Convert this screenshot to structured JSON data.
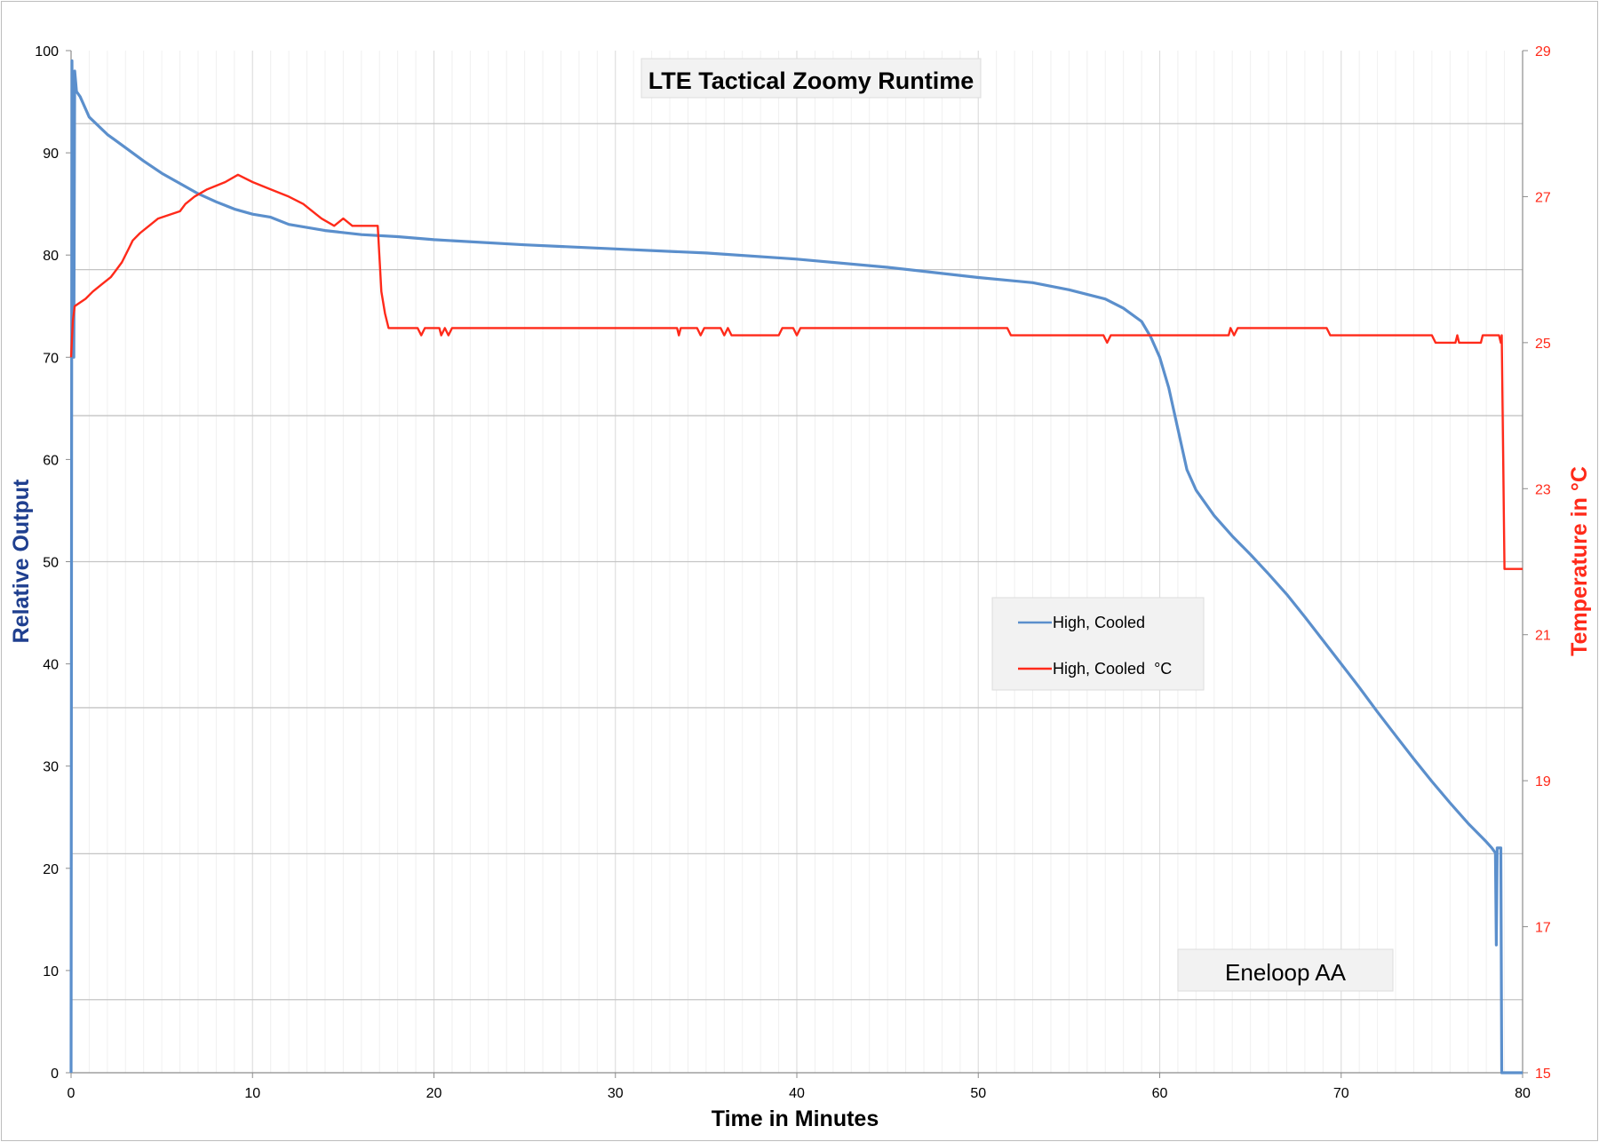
{
  "chart_data": {
    "type": "line",
    "title": "LTE Tactical Zoomy Runtime",
    "xlabel": "Time in Minutes",
    "ylabel": "Relative Output",
    "y2label": "Temperature in °C",
    "xlim": [
      0,
      80
    ],
    "ylim": [
      0,
      100
    ],
    "y2lim": [
      15,
      29
    ],
    "x_ticks": [
      "0",
      "10",
      "20",
      "30",
      "40",
      "50",
      "60",
      "70",
      "80"
    ],
    "y_ticks": [
      "0",
      "10",
      "20",
      "30",
      "40",
      "50",
      "60",
      "70",
      "80",
      "90",
      "100"
    ],
    "y2_ticks": [
      "15",
      "17",
      "19",
      "21",
      "23",
      "25",
      "27",
      "29"
    ],
    "annotation": "Eneloop AA",
    "legend_position": "center-right",
    "grid": true,
    "series": [
      {
        "name": "High, Cooled",
        "axis": "left",
        "color": "#5b8fcc",
        "points": [
          [
            0,
            0
          ],
          [
            0.05,
            99
          ],
          [
            0.15,
            70
          ],
          [
            0.2,
            98
          ],
          [
            0.3,
            96
          ],
          [
            0.5,
            95.5
          ],
          [
            1,
            93.5
          ],
          [
            2,
            91.8
          ],
          [
            3,
            90.5
          ],
          [
            4,
            89.2
          ],
          [
            5,
            88
          ],
          [
            6,
            87
          ],
          [
            7,
            86
          ],
          [
            8,
            85.2
          ],
          [
            9,
            84.5
          ],
          [
            10,
            84
          ],
          [
            11,
            83.7
          ],
          [
            12,
            83
          ],
          [
            14,
            82.4
          ],
          [
            16,
            82
          ],
          [
            18,
            81.8
          ],
          [
            20,
            81.5
          ],
          [
            25,
            81
          ],
          [
            30,
            80.6
          ],
          [
            35,
            80.2
          ],
          [
            40,
            79.6
          ],
          [
            45,
            78.8
          ],
          [
            50,
            77.8
          ],
          [
            53,
            77.3
          ],
          [
            55,
            76.6
          ],
          [
            57,
            75.7
          ],
          [
            58,
            74.8
          ],
          [
            59,
            73.5
          ],
          [
            59.5,
            72
          ],
          [
            60,
            70
          ],
          [
            60.5,
            67
          ],
          [
            61,
            63
          ],
          [
            61.5,
            59
          ],
          [
            62,
            57
          ],
          [
            63,
            54.5
          ],
          [
            64,
            52.5
          ],
          [
            65,
            50.7
          ],
          [
            66,
            48.8
          ],
          [
            67,
            46.8
          ],
          [
            68,
            44.6
          ],
          [
            69,
            42.3
          ],
          [
            70,
            40
          ],
          [
            71,
            37.7
          ],
          [
            72,
            35.3
          ],
          [
            73,
            33
          ],
          [
            74,
            30.7
          ],
          [
            75,
            28.5
          ],
          [
            76,
            26.4
          ],
          [
            77,
            24.4
          ],
          [
            78,
            22.6
          ],
          [
            78.3,
            22
          ],
          [
            78.5,
            21.5
          ],
          [
            78.55,
            12.5
          ],
          [
            78.6,
            22
          ],
          [
            78.8,
            22
          ],
          [
            78.85,
            0
          ],
          [
            80,
            0
          ]
        ]
      },
      {
        "name": "High, Cooled  °C",
        "axis": "right",
        "color": "#ff2a1a",
        "points": [
          [
            0,
            24.8
          ],
          [
            0.1,
            25.3
          ],
          [
            0.2,
            25.5
          ],
          [
            0.8,
            25.6
          ],
          [
            1.2,
            25.7
          ],
          [
            1.7,
            25.8
          ],
          [
            2.2,
            25.9
          ],
          [
            2.5,
            26
          ],
          [
            2.8,
            26.1
          ],
          [
            3,
            26.2
          ],
          [
            3.2,
            26.3
          ],
          [
            3.4,
            26.4
          ],
          [
            3.8,
            26.5
          ],
          [
            4.3,
            26.6
          ],
          [
            4.8,
            26.7
          ],
          [
            6,
            26.8
          ],
          [
            6.3,
            26.9
          ],
          [
            6.8,
            27
          ],
          [
            7.5,
            27.1
          ],
          [
            8.5,
            27.2
          ],
          [
            9.2,
            27.3
          ],
          [
            10,
            27.2
          ],
          [
            11,
            27.1
          ],
          [
            12,
            27
          ],
          [
            12.8,
            26.9
          ],
          [
            13.3,
            26.8
          ],
          [
            13.8,
            26.7
          ],
          [
            14.5,
            26.6
          ],
          [
            15,
            26.7
          ],
          [
            15.5,
            26.6
          ],
          [
            16.9,
            26.6
          ],
          [
            17.1,
            25.7
          ],
          [
            17.3,
            25.4
          ],
          [
            17.5,
            25.2
          ],
          [
            19.1,
            25.2
          ],
          [
            19.3,
            25.1
          ],
          [
            19.5,
            25.2
          ],
          [
            20.3,
            25.2
          ],
          [
            20.4,
            25.1
          ],
          [
            20.6,
            25.2
          ],
          [
            20.8,
            25.1
          ],
          [
            21,
            25.2
          ],
          [
            33.4,
            25.2
          ],
          [
            33.5,
            25.1
          ],
          [
            33.6,
            25.2
          ],
          [
            34.5,
            25.2
          ],
          [
            34.7,
            25.1
          ],
          [
            34.9,
            25.2
          ],
          [
            35.8,
            25.2
          ],
          [
            36,
            25.1
          ],
          [
            36.2,
            25.2
          ],
          [
            36.4,
            25.1
          ],
          [
            39,
            25.1
          ],
          [
            39.2,
            25.2
          ],
          [
            39.8,
            25.2
          ],
          [
            40,
            25.1
          ],
          [
            40.2,
            25.2
          ],
          [
            51.6,
            25.2
          ],
          [
            51.8,
            25.1
          ],
          [
            56.9,
            25.1
          ],
          [
            57.1,
            25
          ],
          [
            57.3,
            25.1
          ],
          [
            63.8,
            25.1
          ],
          [
            63.9,
            25.2
          ],
          [
            64.1,
            25.1
          ],
          [
            64.3,
            25.2
          ],
          [
            69.2,
            25.2
          ],
          [
            69.4,
            25.1
          ],
          [
            75,
            25.1
          ],
          [
            75.2,
            25
          ],
          [
            76.3,
            25
          ],
          [
            76.4,
            25.1
          ],
          [
            76.5,
            25
          ],
          [
            77.7,
            25
          ],
          [
            77.8,
            25.1
          ],
          [
            78.7,
            25.1
          ],
          [
            78.8,
            25
          ],
          [
            78.85,
            25.1
          ],
          [
            79,
            21.9
          ],
          [
            80,
            21.9
          ]
        ]
      }
    ]
  }
}
